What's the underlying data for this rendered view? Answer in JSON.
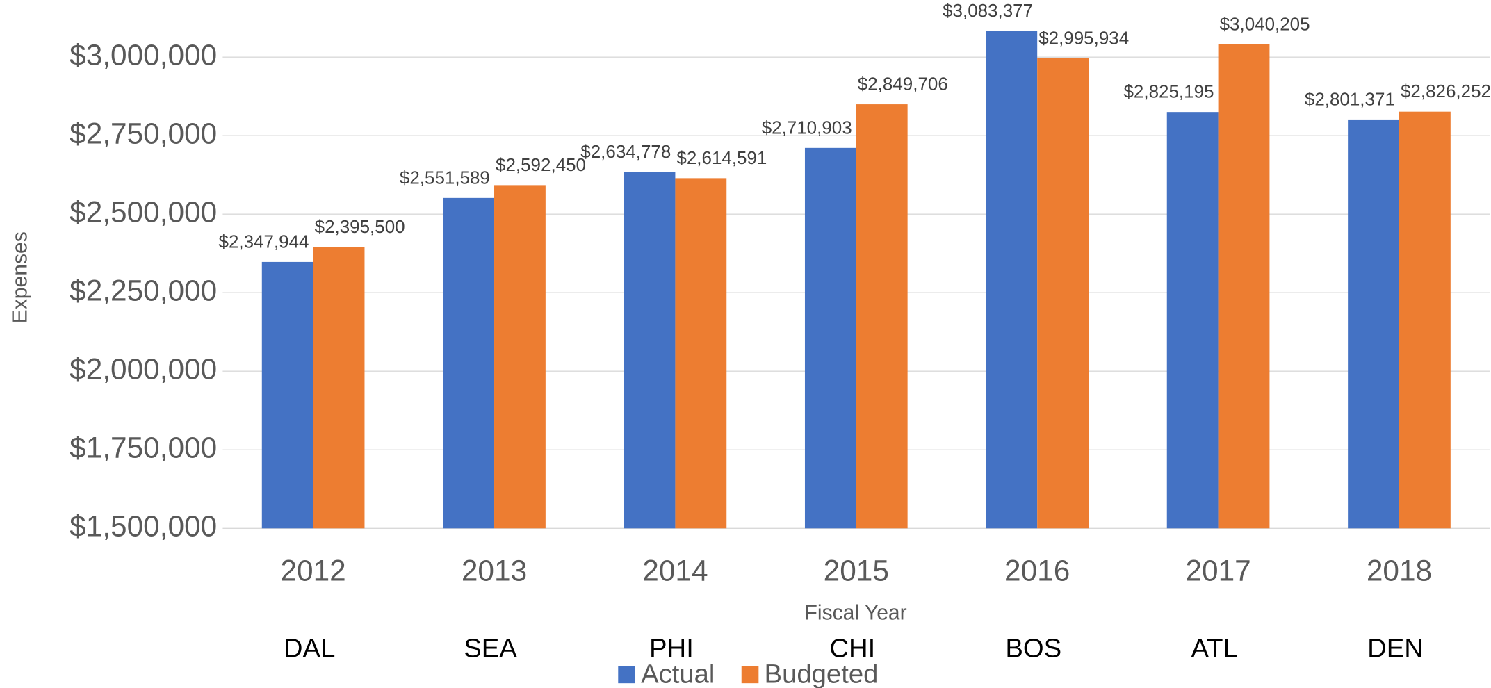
{
  "chart_data": {
    "type": "bar",
    "y_axis_label": "Expenses",
    "x_axis_label": "Fiscal Year",
    "categories": [
      "2012",
      "2013",
      "2014",
      "2015",
      "2016",
      "2017",
      "2018"
    ],
    "annotations": [
      "DAL",
      "SEA",
      "PHI",
      "CHI",
      "BOS",
      "ATL",
      "DEN"
    ],
    "series": [
      {
        "name": "Actual",
        "color": "#4472c4",
        "values": [
          2347944,
          2551589,
          2634778,
          2710903,
          3083377,
          2825195,
          2801371
        ],
        "value_labels": [
          "$2,347,944",
          "$2,551,589",
          "$2,634,778",
          "$2,710,903",
          "$3,083,377",
          "$2,825,195",
          "$2,801,371"
        ]
      },
      {
        "name": "Budgeted",
        "color": "#ed7d31",
        "values": [
          2395500,
          2592450,
          2614591,
          2849706,
          2995934,
          3040205,
          2826252
        ],
        "value_labels": [
          "$2,395,500",
          "$2,592,450",
          "$2,614,591",
          "$2,849,706",
          "$2,995,934",
          "$3,040,205",
          "$2,826,252"
        ]
      }
    ],
    "ylim": [
      1500000,
      3100000
    ],
    "yticks": [
      {
        "value": 1500000,
        "label": "$1,500,000"
      },
      {
        "value": 1750000,
        "label": "$1,750,000"
      },
      {
        "value": 2000000,
        "label": "$2,000,000"
      },
      {
        "value": 2250000,
        "label": "$2,250,000"
      },
      {
        "value": 2500000,
        "label": "$2,500,000"
      },
      {
        "value": 2750000,
        "label": "$2,750,000"
      },
      {
        "value": 3000000,
        "label": "$3,000,000"
      }
    ],
    "grid": true,
    "legend": "bottom"
  }
}
